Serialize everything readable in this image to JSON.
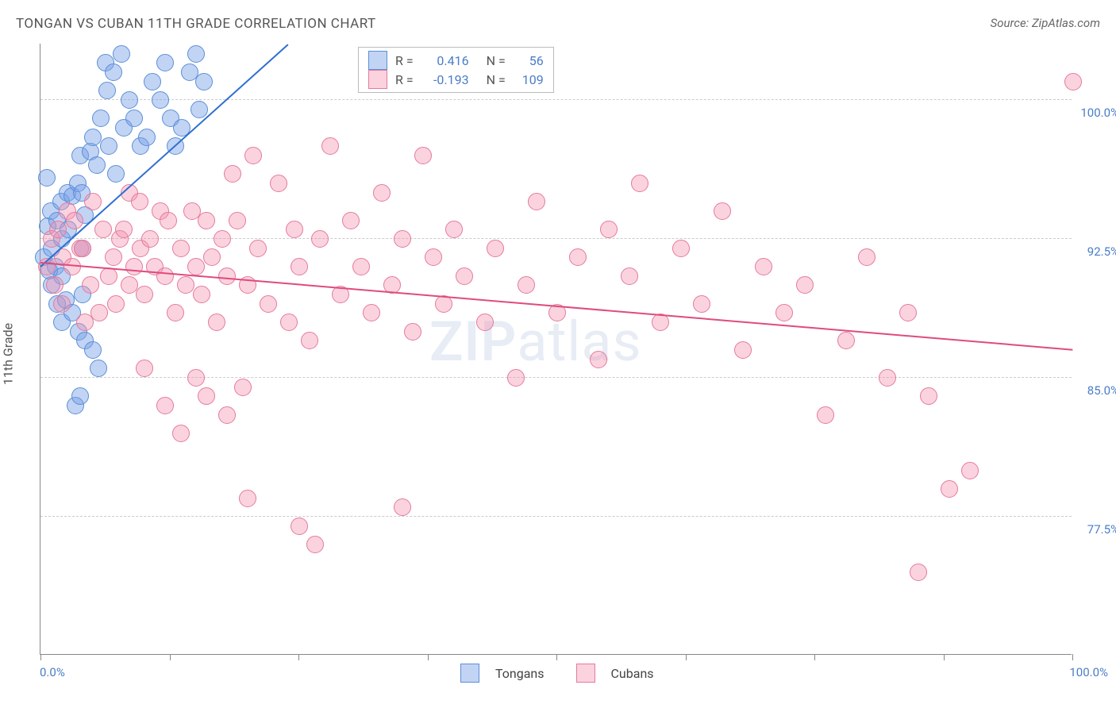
{
  "title": "TONGAN VS CUBAN 11TH GRADE CORRELATION CHART",
  "source": "Source: ZipAtlas.com",
  "y_axis_label": "11th Grade",
  "watermark_bold": "ZIP",
  "watermark_light": "atlas",
  "chart": {
    "type": "scatter",
    "background_color": "#ffffff",
    "grid_color": "#cccccc",
    "axis_color": "#888888",
    "text_color": "#555555",
    "tick_label_color": "#4a7dc9",
    "xlim": [
      0,
      100
    ],
    "ylim": [
      70,
      103
    ],
    "y_gridlines": [
      77.5,
      85.0,
      92.5,
      100.0
    ],
    "y_tick_labels": [
      "77.5%",
      "85.0%",
      "92.5%",
      "100.0%"
    ],
    "x_ticks": [
      0,
      12.5,
      25,
      37.5,
      50,
      62.5,
      75,
      87.5,
      100
    ],
    "x_extremes": {
      "min_label": "0.0%",
      "max_label": "100.0%"
    },
    "marker_radius": 10,
    "series": [
      {
        "name": "Tongans",
        "fill": "rgba(120,160,230,0.45)",
        "stroke": "#5b8fd8",
        "trend_color": "#2f6fd0",
        "R": "0.416",
        "N": "56",
        "trendline": {
          "x1": 0,
          "y1": 91.0,
          "x2": 24,
          "y2": 103.0
        },
        "points": [
          [
            0.2,
            91.5
          ],
          [
            0.6,
            93.2
          ],
          [
            0.5,
            95.8
          ],
          [
            0.9,
            94.0
          ],
          [
            1.0,
            92.0
          ],
          [
            1.4,
            91.0
          ],
          [
            1.0,
            90.0
          ],
          [
            0.8,
            90.8
          ],
          [
            1.5,
            93.5
          ],
          [
            1.9,
            94.5
          ],
          [
            2.0,
            92.5
          ],
          [
            2.5,
            95.0
          ],
          [
            2.6,
            93.0
          ],
          [
            2.0,
            90.5
          ],
          [
            3.0,
            94.8
          ],
          [
            3.5,
            95.5
          ],
          [
            3.8,
            97.0
          ],
          [
            3.9,
            95.0
          ],
          [
            4.2,
            93.8
          ],
          [
            4.8,
            97.2
          ],
          [
            4.0,
            92.0
          ],
          [
            5.0,
            98.0
          ],
          [
            5.4,
            96.5
          ],
          [
            5.8,
            99.0
          ],
          [
            6.2,
            102.0
          ],
          [
            6.4,
            100.5
          ],
          [
            7.0,
            101.5
          ],
          [
            7.8,
            102.5
          ],
          [
            6.5,
            97.5
          ],
          [
            7.2,
            96.0
          ],
          [
            8.0,
            98.5
          ],
          [
            8.5,
            100.0
          ],
          [
            9.0,
            99.0
          ],
          [
            9.6,
            97.5
          ],
          [
            10.2,
            98.0
          ],
          [
            10.8,
            101.0
          ],
          [
            11.5,
            100.0
          ],
          [
            12.0,
            102.0
          ],
          [
            12.5,
            99.0
          ],
          [
            13.0,
            97.5
          ],
          [
            13.6,
            98.5
          ],
          [
            14.4,
            101.5
          ],
          [
            15.0,
            102.5
          ],
          [
            15.8,
            101.0
          ],
          [
            15.3,
            99.5
          ],
          [
            1.5,
            89.0
          ],
          [
            2.0,
            88.0
          ],
          [
            2.4,
            89.2
          ],
          [
            3.0,
            88.5
          ],
          [
            3.6,
            87.5
          ],
          [
            4.2,
            87.0
          ],
          [
            4.0,
            89.5
          ],
          [
            5.0,
            86.5
          ],
          [
            5.5,
            85.5
          ],
          [
            3.3,
            83.5
          ],
          [
            3.8,
            84.0
          ]
        ]
      },
      {
        "name": "Cubans",
        "fill": "rgba(245,145,175,0.40)",
        "stroke": "#e57a9c",
        "trend_color": "#e04b7b",
        "R": "-0.193",
        "N": "109",
        "trendline": {
          "x1": 0,
          "y1": 91.2,
          "x2": 100,
          "y2": 86.5
        },
        "points": [
          [
            0.5,
            91.0
          ],
          [
            1.0,
            92.5
          ],
          [
            1.3,
            90.0
          ],
          [
            1.6,
            93.0
          ],
          [
            2.1,
            91.5
          ],
          [
            2.5,
            94.0
          ],
          [
            2.0,
            89.0
          ],
          [
            3.0,
            91.0
          ],
          [
            3.2,
            93.5
          ],
          [
            3.8,
            92.0
          ],
          [
            4.0,
            92.0
          ],
          [
            4.2,
            88.0
          ],
          [
            4.8,
            90.0
          ],
          [
            5.0,
            94.5
          ],
          [
            5.6,
            88.5
          ],
          [
            6.0,
            93.0
          ],
          [
            6.5,
            90.5
          ],
          [
            7.0,
            91.5
          ],
          [
            7.2,
            89.0
          ],
          [
            7.6,
            92.5
          ],
          [
            8.0,
            93.0
          ],
          [
            8.5,
            90.0
          ],
          [
            9.0,
            91.0
          ],
          [
            9.6,
            92.0
          ],
          [
            10.0,
            89.5
          ],
          [
            8.5,
            95.0
          ],
          [
            9.5,
            94.5
          ],
          [
            10.5,
            92.5
          ],
          [
            11.0,
            91.0
          ],
          [
            11.5,
            94.0
          ],
          [
            12.0,
            90.5
          ],
          [
            12.3,
            93.5
          ],
          [
            13.0,
            88.5
          ],
          [
            13.5,
            92.0
          ],
          [
            14.0,
            90.0
          ],
          [
            14.6,
            94.0
          ],
          [
            15.0,
            91.0
          ],
          [
            15.5,
            89.5
          ],
          [
            16.0,
            93.5
          ],
          [
            16.5,
            91.5
          ],
          [
            17.0,
            88.0
          ],
          [
            17.5,
            92.5
          ],
          [
            18.0,
            90.5
          ],
          [
            18.5,
            96.0
          ],
          [
            19.0,
            93.5
          ],
          [
            10.0,
            85.5
          ],
          [
            12.0,
            83.5
          ],
          [
            13.5,
            82.0
          ],
          [
            15.0,
            85.0
          ],
          [
            16.0,
            84.0
          ],
          [
            18.0,
            83.0
          ],
          [
            19.5,
            84.5
          ],
          [
            20.0,
            90.0
          ],
          [
            20.5,
            97.0
          ],
          [
            21.0,
            92.0
          ],
          [
            22.0,
            89.0
          ],
          [
            23.0,
            95.5
          ],
          [
            24.0,
            88.0
          ],
          [
            24.5,
            93.0
          ],
          [
            25.0,
            91.0
          ],
          [
            26.0,
            87.0
          ],
          [
            27.0,
            92.5
          ],
          [
            28.0,
            97.5
          ],
          [
            29.0,
            89.5
          ],
          [
            30.0,
            93.5
          ],
          [
            31.0,
            91.0
          ],
          [
            32.0,
            88.5
          ],
          [
            33.0,
            95.0
          ],
          [
            34.0,
            90.0
          ],
          [
            35.0,
            92.5
          ],
          [
            36.0,
            87.5
          ],
          [
            37.0,
            97.0
          ],
          [
            38.0,
            91.5
          ],
          [
            39.0,
            89.0
          ],
          [
            40.0,
            93.0
          ],
          [
            41.0,
            90.5
          ],
          [
            43.0,
            88.0
          ],
          [
            44.0,
            92.0
          ],
          [
            46.0,
            85.0
          ],
          [
            47.0,
            90.0
          ],
          [
            48.0,
            94.5
          ],
          [
            50.0,
            88.5
          ],
          [
            52.0,
            91.5
          ],
          [
            54.0,
            86.0
          ],
          [
            55.0,
            93.0
          ],
          [
            57.0,
            90.5
          ],
          [
            58.0,
            95.5
          ],
          [
            60.0,
            88.0
          ],
          [
            62.0,
            92.0
          ],
          [
            64.0,
            89.0
          ],
          [
            66.0,
            94.0
          ],
          [
            68.0,
            86.5
          ],
          [
            70.0,
            91.0
          ],
          [
            72.0,
            88.5
          ],
          [
            74.0,
            90.0
          ],
          [
            76.0,
            83.0
          ],
          [
            78.0,
            87.0
          ],
          [
            80.0,
            91.5
          ],
          [
            82.0,
            85.0
          ],
          [
            84.0,
            88.5
          ],
          [
            86.0,
            84.0
          ],
          [
            88.0,
            79.0
          ],
          [
            90.0,
            80.0
          ],
          [
            85.0,
            74.5
          ],
          [
            20.0,
            78.5
          ],
          [
            25.0,
            77.0
          ],
          [
            26.5,
            76.0
          ],
          [
            35.0,
            78.0
          ],
          [
            100.0,
            101.0
          ]
        ]
      }
    ]
  },
  "legend_bottom": {
    "label1": "Tongans",
    "label2": "Cubans"
  }
}
